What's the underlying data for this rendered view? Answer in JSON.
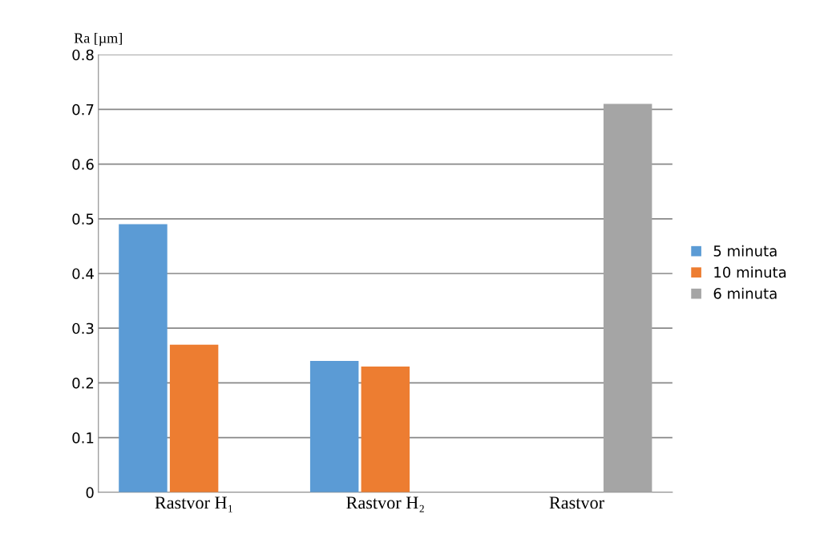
{
  "chart_data": {
    "type": "bar",
    "ylabel": "Ra [µm]",
    "categories": [
      "Rastvor H₁",
      "Rastvor H₂",
      "Rastvor"
    ],
    "series": [
      {
        "name": "5 minuta",
        "color": "#5b9bd5",
        "values": [
          0.49,
          0.24,
          null
        ]
      },
      {
        "name": "10 minuta",
        "color": "#ed7d31",
        "values": [
          0.27,
          0.23,
          null
        ]
      },
      {
        "name": "6 minuta",
        "color": "#a5a5a5",
        "values": [
          null,
          null,
          0.71
        ]
      }
    ],
    "ylim": [
      0,
      0.8
    ],
    "yticks": [
      0,
      0.1,
      0.2,
      0.3,
      0.4,
      0.5,
      0.6,
      0.7,
      0.8
    ],
    "grid": "y",
    "legend": "right"
  }
}
